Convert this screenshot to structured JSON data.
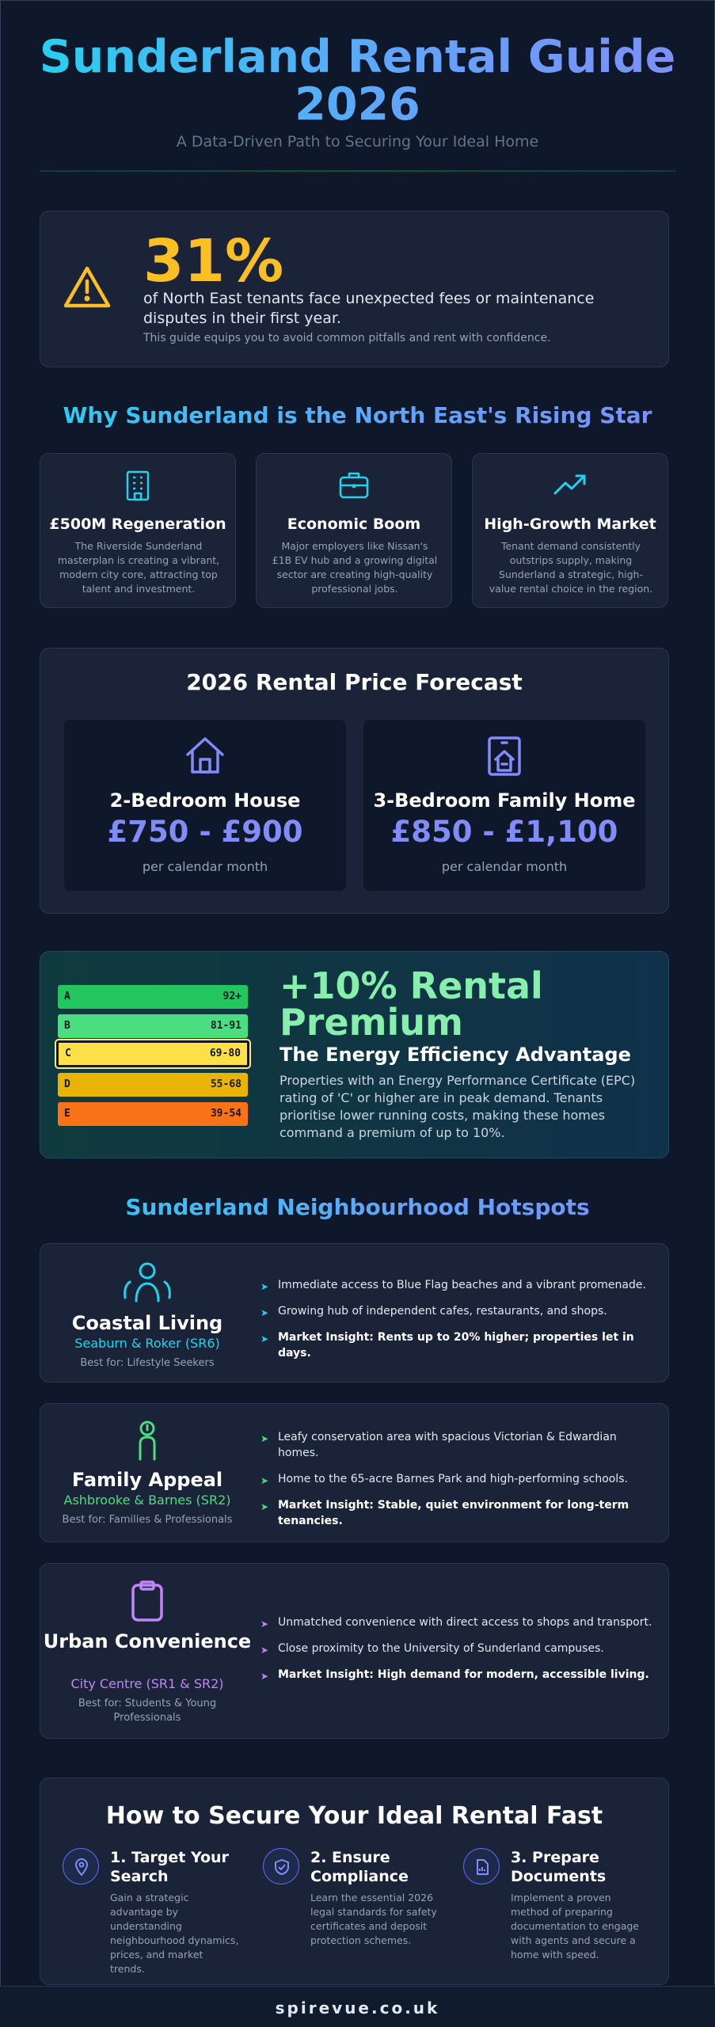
{
  "header": {
    "title_line1": "Sunderland Rental Guide",
    "title_line2": "2026",
    "subtitle": "A Data-Driven Path to Securing Your Ideal Home"
  },
  "alert": {
    "icon": "warning-triangle-icon",
    "stat": "31%",
    "text": "of North East tenants face unexpected fees or maintenance disputes in their first year.",
    "note": "This guide equips you to avoid common pitfalls and rent with confidence."
  },
  "why": {
    "heading": "Why Sunderland is the North East's Rising Star",
    "cards": [
      {
        "icon": "building-icon",
        "title": "£500M Regeneration",
        "desc": "The Riverside Sunderland masterplan is creating a vibrant, modern city core, attracting top talent and investment."
      },
      {
        "icon": "briefcase-icon",
        "title": "Economic Boom",
        "desc": "Major employers like Nissan's £1B EV hub and a growing digital sector are creating high-quality professional jobs."
      },
      {
        "icon": "trending-up-icon",
        "title": "High-Growth Market",
        "desc": "Tenant demand consistently outstrips supply, making Sunderland a strategic, high-value rental choice in the region."
      }
    ]
  },
  "forecast": {
    "title": "2026 Rental Price Forecast",
    "items": [
      {
        "icon": "house-icon",
        "label": "2-Bedroom House",
        "price": "£750 - £900",
        "unit": "per calendar month"
      },
      {
        "icon": "family-home-icon",
        "label": "3-Bedroom Family Home",
        "price": "£850 - £1,100",
        "unit": "per calendar month"
      }
    ]
  },
  "epc": {
    "ratings": [
      {
        "band": "A",
        "range": "92+",
        "color": "#22c55e",
        "selected": false
      },
      {
        "band": "B",
        "range": "81-91",
        "color": "#4ade80",
        "selected": false
      },
      {
        "band": "C",
        "range": "69-80",
        "color": "#fde047",
        "selected": true
      },
      {
        "band": "D",
        "range": "55-68",
        "color": "#eab308",
        "selected": false
      },
      {
        "band": "E",
        "range": "39-54",
        "color": "#f97316",
        "selected": false
      }
    ],
    "headline": "+10% Rental Premium",
    "subheading": "The Energy Efficiency Advantage",
    "text": "Properties with an Energy Performance Certificate (EPC) rating of 'C' or higher are in peak demand. Tenants prioritise lower running costs, making these homes command a premium of up to 10%."
  },
  "hotspots": {
    "heading": "Sunderland Neighbourhood Hotspots",
    "items": [
      {
        "icon": "people-icon",
        "accent": "#22d3ee",
        "title": "Coastal Living",
        "area": "Seaburn & Roker (SR6)",
        "best_for": "Best for: Lifestyle Seekers",
        "points": [
          "Immediate access to Blue Flag beaches and a vibrant promenade.",
          "Growing hub of independent cafes, restaurants, and shops.",
          "Market Insight: Rents up to 20% higher; properties let in days."
        ]
      },
      {
        "icon": "person-icon",
        "accent": "#4ade80",
        "title": "Family Appeal",
        "area": "Ashbrooke & Barnes (SR2)",
        "best_for": "Best for: Families & Professionals",
        "points": [
          "Leafy conservation area with spacious Victorian & Edwardian homes.",
          "Home to the 65-acre Barnes Park and high-performing schools.",
          "Market Insight: Stable, quiet environment for long-term tenancies."
        ]
      },
      {
        "icon": "clipboard-icon",
        "accent": "#c084fc",
        "title": "Urban Convenience",
        "area": "City Centre (SR1 & SR2)",
        "best_for": "Best for: Students & Young Professionals",
        "points": [
          "Unmatched convenience with direct access to shops and transport.",
          "Close proximity to the University of Sunderland campuses.",
          "Market Insight: High demand for modern, accessible living."
        ]
      }
    ]
  },
  "steps": {
    "title": "How to Secure Your Ideal Rental Fast",
    "items": [
      {
        "icon": "target-location-icon",
        "title": "1. Target Your Search",
        "desc": "Gain a strategic advantage by understanding neighbourhood dynamics, prices, and market trends."
      },
      {
        "icon": "shield-check-icon",
        "title": "2. Ensure Compliance",
        "desc": "Learn the essential 2026 legal standards for safety certificates and deposit protection schemes."
      },
      {
        "icon": "document-icon",
        "title": "3. Prepare Documents",
        "desc": "Implement a proven method of preparing documentation to engage with agents and secure a home with speed."
      }
    ]
  },
  "footer": {
    "text": "spirevue.co.uk"
  }
}
